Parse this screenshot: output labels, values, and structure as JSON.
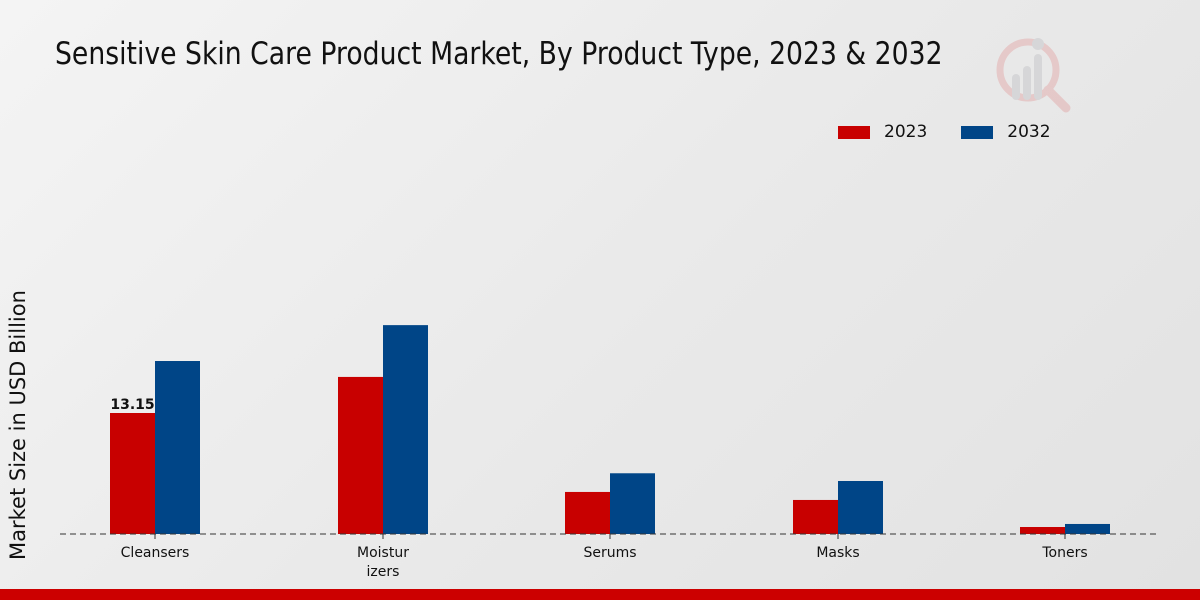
{
  "chart_data": {
    "type": "bar",
    "title": "Sensitive Skin Care Product Market, By Product Type, 2023 & 2032",
    "xlabel": "",
    "ylabel": "Market Size in USD Billion",
    "categories": [
      "Cleansers",
      "Moistur\nizers",
      "Serums",
      "Masks",
      "Toners"
    ],
    "series": [
      {
        "name": "2023",
        "color": "#c80000",
        "values": [
          13.15,
          17.07,
          4.57,
          3.7,
          0.76
        ]
      },
      {
        "name": "2032",
        "color": "#004587",
        "values": [
          18.8,
          22.7,
          6.6,
          5.76,
          1.09
        ]
      }
    ],
    "data_labels": [
      {
        "series": 0,
        "index": 0,
        "text": "13.15"
      }
    ],
    "ylim": [
      0,
      30
    ],
    "grid": false,
    "legend_position": "top-right",
    "baseline_style": "dashed"
  },
  "footer_color": "#cc0000"
}
